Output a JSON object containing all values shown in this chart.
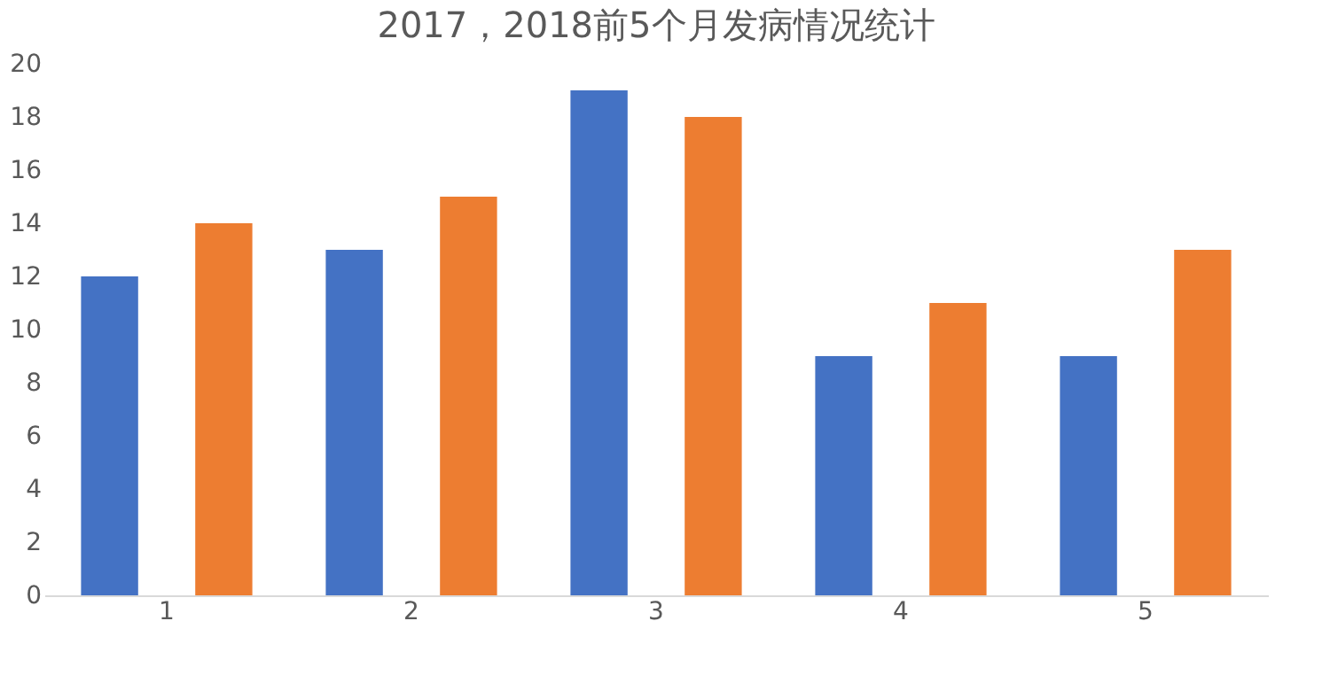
{
  "chart_data": {
    "type": "bar",
    "title": "2017，2018前5个月发病情况统计",
    "categories": [
      "1",
      "2",
      "3",
      "4",
      "5"
    ],
    "series": [
      {
        "color": "#4472c4",
        "values": [
          12,
          13,
          19,
          9,
          9
        ]
      },
      {
        "color": "#ed7d31",
        "values": [
          14,
          15,
          18,
          11,
          13
        ]
      }
    ],
    "ylim": [
      0,
      20
    ],
    "yticks": [
      0,
      2,
      4,
      6,
      8,
      10,
      12,
      14,
      16,
      18,
      20
    ]
  }
}
